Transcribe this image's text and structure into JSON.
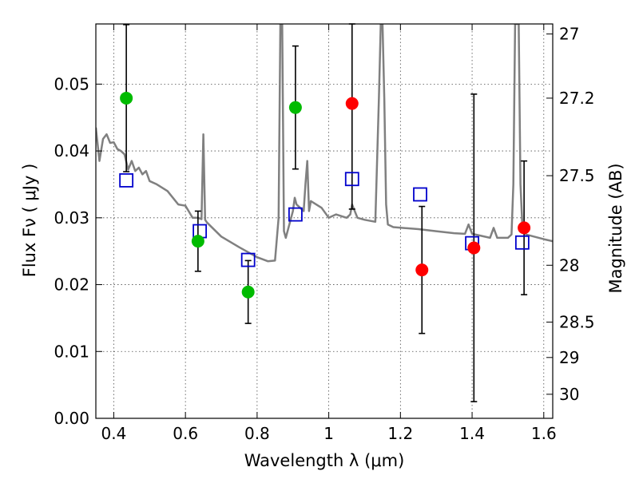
{
  "chart_data": {
    "type": "scatter",
    "xlabel": "Wavelength  λ (μm)",
    "ylabel": "Flux  Fν  ( μJy )",
    "y2label": "Magnitude (AB)",
    "xlim": [
      0.35,
      1.625
    ],
    "ylim": [
      0.0,
      0.059
    ],
    "grid": true,
    "x_ticks": [
      0.4,
      0.6,
      0.8,
      1.0,
      1.2,
      1.4,
      1.6
    ],
    "x_tick_labels": [
      "0.4",
      "0.6",
      "0.8",
      "1",
      "1.2",
      "1.4",
      "1.6"
    ],
    "y_ticks": [
      0.0,
      0.01,
      0.02,
      0.03,
      0.04,
      0.05
    ],
    "y_tick_labels": [
      "0.00",
      "0.01",
      "0.02",
      "0.03",
      "0.04",
      "0.05"
    ],
    "y2_ticks": [
      {
        "flux": 0.0575,
        "label": "27"
      },
      {
        "flux": 0.0479,
        "label": "27.2"
      },
      {
        "flux": 0.0363,
        "label": "27.5"
      },
      {
        "flux": 0.0229,
        "label": "28"
      },
      {
        "flux": 0.0144,
        "label": "28.5"
      },
      {
        "flux": 0.0091,
        "label": "29"
      },
      {
        "flux": 0.0036,
        "label": "30"
      }
    ],
    "colors": {
      "model": "#808080",
      "green": "#00bb00",
      "red": "#ff0000",
      "square": "#0000cc",
      "errorbar": "#000000"
    },
    "series": [
      {
        "kind": "observed-green",
        "points": [
          {
            "x": 0.435,
            "y": 0.0479,
            "yerr_low": 0.011,
            "yerr_high": 0.011
          },
          {
            "x": 0.635,
            "y": 0.0265,
            "yerr_low": 0.0045,
            "yerr_high": 0.0045
          },
          {
            "x": 0.775,
            "y": 0.0189,
            "yerr_low": 0.0047,
            "yerr_high": 0.0047
          },
          {
            "x": 0.907,
            "y": 0.0465,
            "yerr_low": 0.0092,
            "yerr_high": 0.0092
          }
        ]
      },
      {
        "kind": "observed-red",
        "points": [
          {
            "x": 1.065,
            "y": 0.0471,
            "yerr_low": 0.0158,
            "yerr_high": 0.0158
          },
          {
            "x": 1.26,
            "y": 0.0222,
            "yerr_low": 0.0095,
            "yerr_high": 0.0095
          },
          {
            "x": 1.405,
            "y": 0.0255,
            "yerr_low": 0.023,
            "yerr_high": 0.023
          },
          {
            "x": 1.545,
            "y": 0.0285,
            "yerr_low": 0.01,
            "yerr_high": 0.01
          }
        ]
      },
      {
        "kind": "model-bandpass",
        "points": [
          {
            "x": 0.435,
            "y": 0.0356
          },
          {
            "x": 0.64,
            "y": 0.028
          },
          {
            "x": 0.775,
            "y": 0.0237
          },
          {
            "x": 0.907,
            "y": 0.0305
          },
          {
            "x": 1.065,
            "y": 0.0358
          },
          {
            "x": 1.255,
            "y": 0.0335
          },
          {
            "x": 1.4,
            "y": 0.0262
          },
          {
            "x": 1.54,
            "y": 0.0263
          }
        ]
      }
    ],
    "model_spectrum": {
      "x": [
        0.35,
        0.36,
        0.37,
        0.38,
        0.39,
        0.4,
        0.41,
        0.42,
        0.43,
        0.44,
        0.45,
        0.46,
        0.47,
        0.48,
        0.49,
        0.5,
        0.52,
        0.55,
        0.58,
        0.6,
        0.62,
        0.635,
        0.645,
        0.65,
        0.655,
        0.66,
        0.7,
        0.75,
        0.8,
        0.83,
        0.85,
        0.86,
        0.865,
        0.87,
        0.875,
        0.88,
        0.9,
        0.905,
        0.91,
        0.93,
        0.935,
        0.94,
        0.945,
        0.95,
        0.98,
        1.0,
        1.02,
        1.05,
        1.06,
        1.065,
        1.08,
        1.1,
        1.13,
        1.14,
        1.145,
        1.15,
        1.155,
        1.16,
        1.165,
        1.18,
        1.25,
        1.3,
        1.35,
        1.38,
        1.39,
        1.4,
        1.45,
        1.46,
        1.47,
        1.5,
        1.51,
        1.515,
        1.52,
        1.53,
        1.535,
        1.54,
        1.55,
        1.6,
        1.625
      ],
      "y": [
        0.0435,
        0.0385,
        0.0418,
        0.0425,
        0.0412,
        0.0413,
        0.0403,
        0.04,
        0.0395,
        0.0372,
        0.0385,
        0.037,
        0.0375,
        0.0365,
        0.037,
        0.0355,
        0.035,
        0.034,
        0.032,
        0.0318,
        0.03,
        0.03,
        0.0298,
        0.0425,
        0.0297,
        0.0293,
        0.0272,
        0.0256,
        0.0241,
        0.0235,
        0.0236,
        0.03,
        0.0595,
        0.0595,
        0.028,
        0.027,
        0.031,
        0.033,
        0.032,
        0.031,
        0.035,
        0.0385,
        0.031,
        0.0325,
        0.0315,
        0.03,
        0.0305,
        0.03,
        0.0305,
        0.032,
        0.03,
        0.0297,
        0.0294,
        0.048,
        0.0595,
        0.0595,
        0.048,
        0.032,
        0.029,
        0.0286,
        0.0283,
        0.028,
        0.0277,
        0.0276,
        0.029,
        0.0276,
        0.027,
        0.0285,
        0.027,
        0.027,
        0.0275,
        0.035,
        0.0595,
        0.0595,
        0.035,
        0.029,
        0.0275,
        0.0268,
        0.0265
      ]
    }
  }
}
